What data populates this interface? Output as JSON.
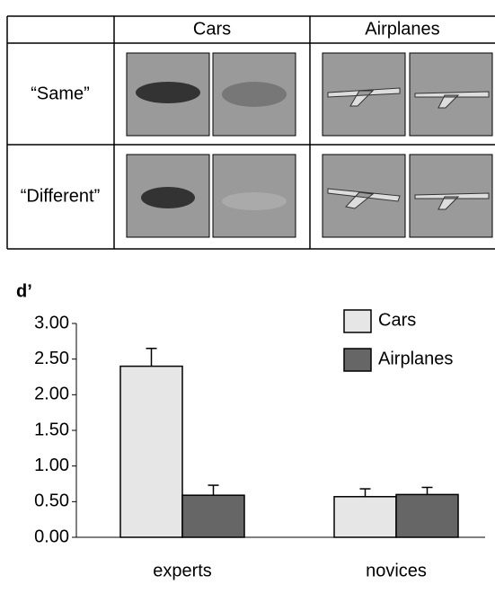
{
  "table": {
    "header": [
      "Cars",
      "Airplanes"
    ],
    "rows": [
      "“Same”",
      "“Different”"
    ]
  },
  "chart_data": {
    "type": "bar",
    "ylabel": "d’",
    "categories": [
      "experts",
      "novices"
    ],
    "series": [
      {
        "name": "Cars",
        "color": "#e6e6e6",
        "values": [
          2.4,
          0.57
        ],
        "errors": [
          0.25,
          0.11
        ]
      },
      {
        "name": "Airplanes",
        "color": "#666666",
        "values": [
          0.59,
          0.6
        ],
        "errors": [
          0.14,
          0.1
        ]
      }
    ],
    "ylim": [
      0,
      3
    ],
    "yticks": [
      {
        "value": 0,
        "label": "0.00"
      },
      {
        "value": 0.5,
        "label": "0.50"
      },
      {
        "value": 1,
        "label": "1.00"
      },
      {
        "value": 1.5,
        "label": "1.50"
      },
      {
        "value": 2,
        "label": "2.00"
      },
      {
        "value": 2.5,
        "label": "2.50"
      },
      {
        "value": 3,
        "label": "3.00"
      }
    ],
    "legend": "upper right"
  }
}
